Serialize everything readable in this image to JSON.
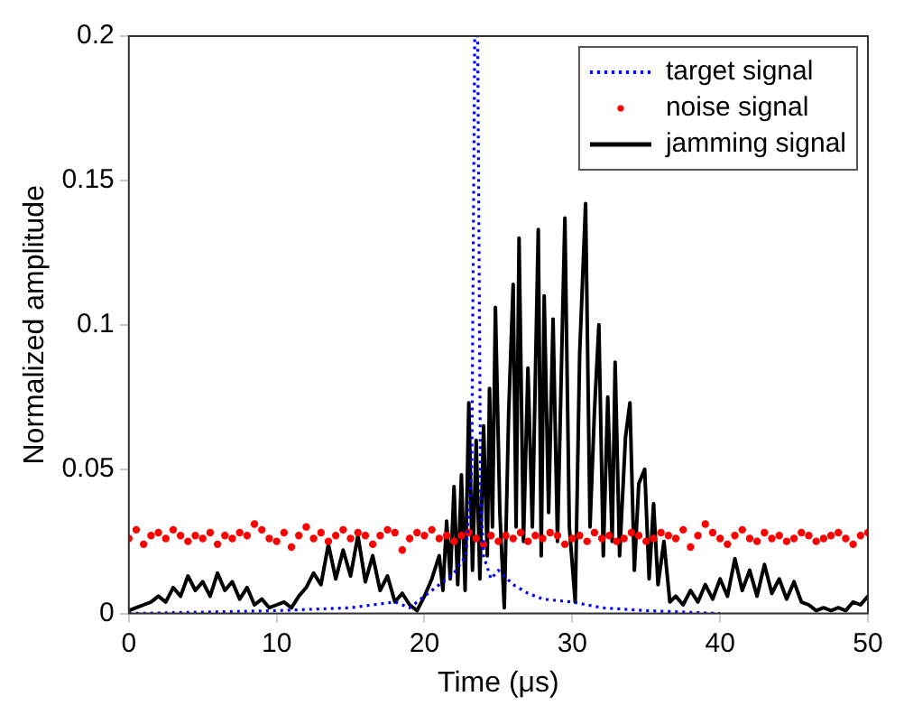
{
  "chart_data": {
    "type": "line",
    "xlabel": "Time (μs)",
    "ylabel": "Normalized amplitude",
    "xlim": [
      0,
      50
    ],
    "ylim": [
      0,
      0.2
    ],
    "xticks": [
      0,
      10,
      20,
      30,
      40,
      50
    ],
    "yticks": [
      0,
      0.05,
      0.1,
      0.15,
      0.2
    ],
    "legend": "top right",
    "grid": false,
    "series": [
      {
        "name": "target signal",
        "type": "line",
        "line_style": "dotted",
        "color": "#0000ff",
        "x": [
          0,
          10,
          15,
          18,
          19,
          20,
          21,
          22,
          22.8,
          23.2,
          23.4,
          23.6,
          23.8,
          24,
          24.5,
          25,
          26,
          27,
          28,
          30,
          32,
          35,
          40
        ],
        "values": [
          0,
          0.001,
          0.002,
          0.004,
          0.002,
          0.006,
          0.01,
          0.014,
          0.02,
          0.05,
          0.2,
          0.2,
          0.04,
          0.02,
          0.012,
          0.015,
          0.01,
          0.007,
          0.005,
          0.004,
          0.002,
          0.001,
          0
        ]
      },
      {
        "name": "noise signal",
        "type": "scatter",
        "marker": "circle",
        "color": "#ff0000",
        "x": [
          0,
          0.5,
          1,
          1.5,
          2,
          2.5,
          3,
          3.5,
          4,
          4.5,
          5,
          5.5,
          6,
          6.5,
          7,
          7.5,
          8,
          8.5,
          9,
          9.5,
          10,
          10.5,
          11,
          11.5,
          12,
          12.5,
          13,
          13.5,
          14,
          14.5,
          15,
          15.5,
          16,
          16.5,
          17,
          17.5,
          18,
          18.5,
          19,
          19.5,
          20,
          20.5,
          21,
          21.5,
          22,
          22.5,
          23,
          23.5,
          24,
          24.5,
          25,
          25.5,
          26,
          26.5,
          27,
          27.5,
          28,
          28.5,
          29,
          29.5,
          30,
          30.5,
          31,
          31.5,
          32,
          32.5,
          33,
          33.5,
          34,
          34.5,
          35,
          35.5,
          36,
          36.5,
          37,
          37.5,
          38,
          38.5,
          39,
          39.5,
          40,
          40.5,
          41,
          41.5,
          42,
          42.5,
          43,
          43.5,
          44,
          44.5,
          45,
          45.5,
          46,
          46.5,
          47,
          47.5,
          48,
          48.5,
          49,
          49.5,
          50
        ],
        "values": [
          0.026,
          0.029,
          0.024,
          0.027,
          0.028,
          0.026,
          0.029,
          0.027,
          0.025,
          0.027,
          0.026,
          0.028,
          0.024,
          0.027,
          0.026,
          0.028,
          0.027,
          0.031,
          0.029,
          0.026,
          0.025,
          0.028,
          0.023,
          0.027,
          0.03,
          0.026,
          0.028,
          0.025,
          0.027,
          0.029,
          0.026,
          0.028,
          0.027,
          0.024,
          0.027,
          0.029,
          0.028,
          0.022,
          0.026,
          0.028,
          0.027,
          0.029,
          0.026,
          0.027,
          0.025,
          0.027,
          0.028,
          0.026,
          0.024,
          0.027,
          0.025,
          0.027,
          0.026,
          0.028,
          0.025,
          0.027,
          0.026,
          0.028,
          0.027,
          0.024,
          0.026,
          0.027,
          0.025,
          0.028,
          0.026,
          0.027,
          0.025,
          0.026,
          0.028,
          0.027,
          0.025,
          0.026,
          0.028,
          0.027,
          0.026,
          0.029,
          0.023,
          0.027,
          0.031,
          0.028,
          0.026,
          0.024,
          0.027,
          0.029,
          0.026,
          0.025,
          0.028,
          0.026,
          0.027,
          0.025,
          0.026,
          0.028,
          0.027,
          0.025,
          0.026,
          0.027,
          0.028,
          0.026,
          0.024,
          0.027,
          0.028
        ]
      },
      {
        "name": "jamming signal",
        "type": "line",
        "line_style": "solid",
        "color": "#000000",
        "x": [
          0,
          0.5,
          1,
          1.5,
          2,
          2.5,
          3,
          3.5,
          4,
          4.5,
          5,
          5.5,
          6,
          6.5,
          7,
          7.5,
          8,
          8.5,
          9,
          9.5,
          10,
          10.5,
          11,
          11.5,
          12,
          12.5,
          13,
          13.5,
          14,
          14.5,
          15,
          15.5,
          16,
          16.5,
          17,
          17.5,
          18,
          18.5,
          19,
          19.5,
          20,
          20.5,
          21,
          21.25,
          21.5,
          21.75,
          22,
          22.25,
          22.5,
          22.75,
          23,
          23.25,
          23.5,
          23.75,
          24,
          24.25,
          24.4,
          24.6,
          24.8,
          25.1,
          25.4,
          25.7,
          26,
          26.2,
          26.4,
          26.7,
          27,
          27.3,
          27.7,
          27.9,
          28.1,
          28.4,
          28.7,
          29,
          29.3,
          29.5,
          29.8,
          30.2,
          30.5,
          30.9,
          31.2,
          31.5,
          31.8,
          32.1,
          32.4,
          32.7,
          32.9,
          33.2,
          33.6,
          33.9,
          34.2,
          34.5,
          34.9,
          35.2,
          35.5,
          35.8,
          36.2,
          36.6,
          37,
          37.5,
          38,
          38.5,
          39,
          39.5,
          40,
          40.5,
          41,
          41.5,
          42,
          42.5,
          43,
          43.5,
          44,
          44.5,
          45,
          45.5,
          46,
          46.5,
          47,
          47.5,
          48,
          48.5,
          49,
          49.5,
          50
        ],
        "values": [
          0.001,
          0.002,
          0.003,
          0.004,
          0.006,
          0.004,
          0.009,
          0.006,
          0.013,
          0.008,
          0.011,
          0.006,
          0.014,
          0.008,
          0.011,
          0.005,
          0.009,
          0.003,
          0.005,
          0.002,
          0.003,
          0.004,
          0.002,
          0.006,
          0.009,
          0.014,
          0.01,
          0.024,
          0.012,
          0.022,
          0.013,
          0.027,
          0.011,
          0.02,
          0.008,
          0.013,
          0.004,
          0.007,
          0.003,
          0.001,
          0.006,
          0.012,
          0.02,
          0.008,
          0.032,
          0.012,
          0.044,
          0.01,
          0.048,
          0.008,
          0.073,
          0.015,
          0.06,
          0.012,
          0.065,
          0.02,
          0.078,
          0.03,
          0.106,
          0.035,
          0.002,
          0.07,
          0.114,
          0.03,
          0.13,
          0.025,
          0.085,
          0.03,
          0.133,
          0.02,
          0.11,
          0.035,
          0.102,
          0.025,
          0.093,
          0.137,
          0.03,
          0.004,
          0.09,
          0.142,
          0.03,
          0.07,
          0.1,
          0.02,
          0.075,
          0.025,
          0.087,
          0.02,
          0.061,
          0.073,
          0.015,
          0.045,
          0.05,
          0.012,
          0.038,
          0.01,
          0.025,
          0.004,
          0.006,
          0.003,
          0.008,
          0.004,
          0.01,
          0.005,
          0.012,
          0.006,
          0.019,
          0.008,
          0.015,
          0.006,
          0.017,
          0.007,
          0.012,
          0.005,
          0.011,
          0.004,
          0.003,
          0.001,
          0.002,
          0.001,
          0.002,
          0.001,
          0.004,
          0.003,
          0.006
        ]
      }
    ]
  }
}
